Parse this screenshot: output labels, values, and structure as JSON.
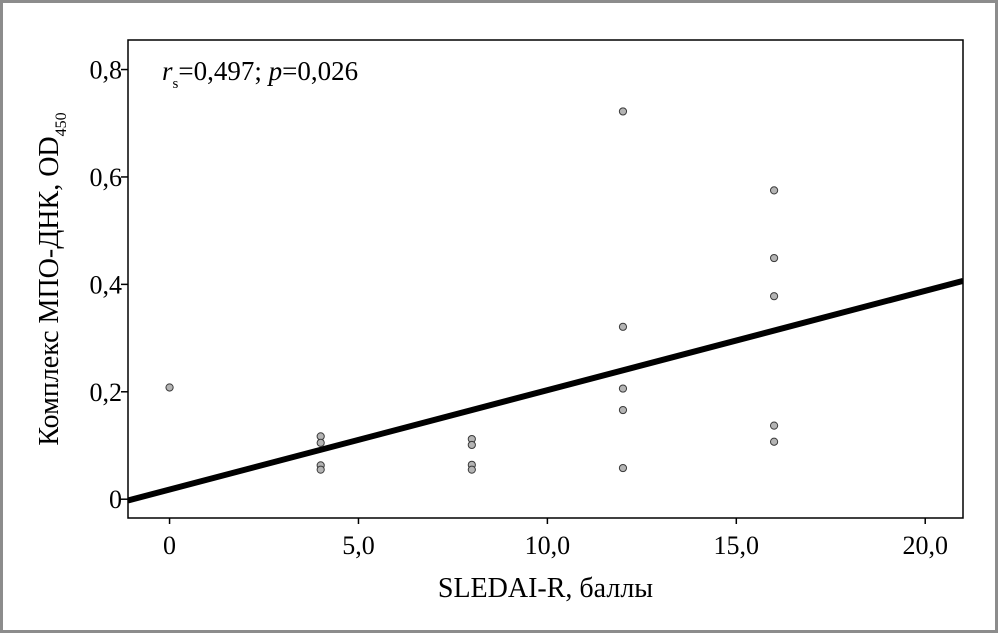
{
  "chart_data": {
    "type": "scatter",
    "xlabel": "SLEDAI-R, баллы",
    "ylabel": "Комплекс МПО-ДНК, OD",
    "ylabel_subscript": "450",
    "xlim": [
      -1.1,
      21.0
    ],
    "ylim": [
      -0.035,
      0.855
    ],
    "x_ticks": [
      0,
      5,
      10,
      15,
      20
    ],
    "x_tick_labels": [
      "0",
      "5,0",
      "10,0",
      "15,0",
      "20,0"
    ],
    "y_ticks": [
      0,
      0.2,
      0.4,
      0.6,
      0.8
    ],
    "y_tick_labels": [
      "0",
      "0,2",
      "0,4",
      "0,6",
      "0,8"
    ],
    "grid": false,
    "annotation": {
      "r": "r",
      "r_sub": "s",
      "r_value": "=0,497; ",
      "p": "p",
      "p_value": "=0,026"
    },
    "points": [
      {
        "x": 0,
        "y": 0.208
      },
      {
        "x": 4,
        "y": 0.117
      },
      {
        "x": 4,
        "y": 0.105
      },
      {
        "x": 4,
        "y": 0.063
      },
      {
        "x": 4,
        "y": 0.055
      },
      {
        "x": 8,
        "y": 0.112
      },
      {
        "x": 8,
        "y": 0.101
      },
      {
        "x": 8,
        "y": 0.064
      },
      {
        "x": 8,
        "y": 0.055
      },
      {
        "x": 12,
        "y": 0.722
      },
      {
        "x": 12,
        "y": 0.321
      },
      {
        "x": 12,
        "y": 0.206
      },
      {
        "x": 12,
        "y": 0.166
      },
      {
        "x": 12,
        "y": 0.058
      },
      {
        "x": 16,
        "y": 0.575
      },
      {
        "x": 16,
        "y": 0.449
      },
      {
        "x": 16,
        "y": 0.378
      },
      {
        "x": 16,
        "y": 0.137
      },
      {
        "x": 16,
        "y": 0.107
      }
    ],
    "regression": {
      "slope": 0.0185,
      "intercept": 0.018
    },
    "colors": {
      "point_fill": "#b4b4b4",
      "point_stroke": "#3a3a3a",
      "line": "#000000"
    }
  }
}
